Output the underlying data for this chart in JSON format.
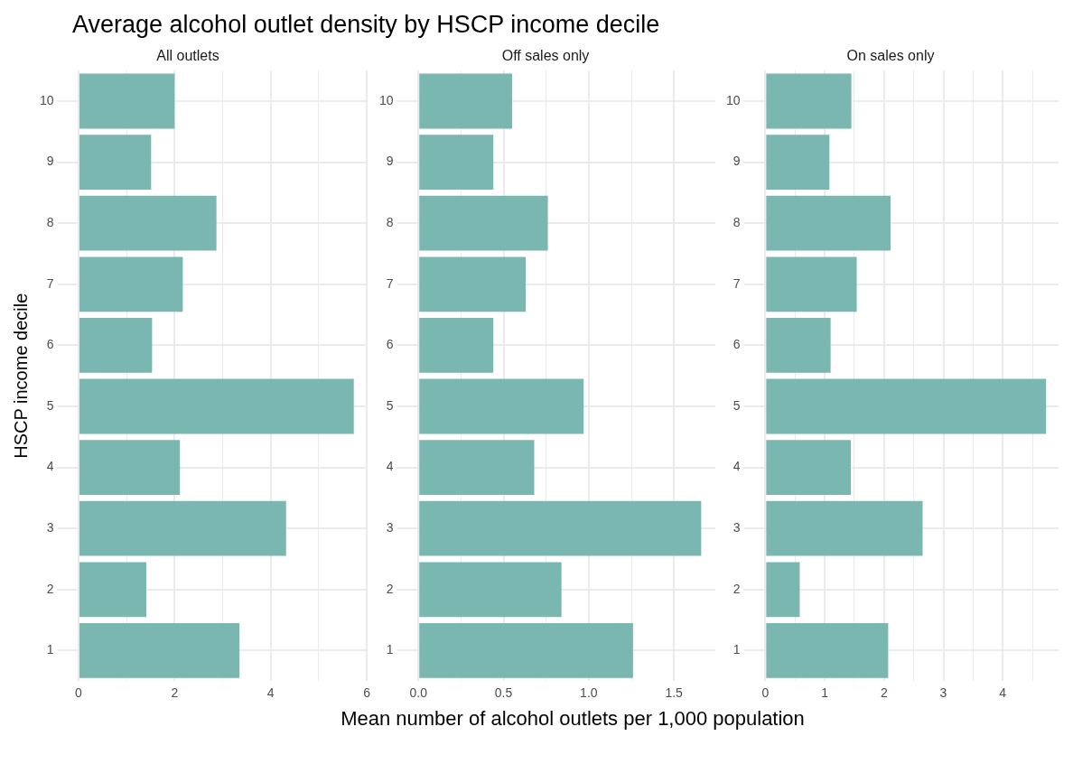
{
  "chart_data": [
    {
      "type": "bar",
      "orientation": "horizontal",
      "title": "Average alcohol outlet density by HSCP income decile",
      "subtitle": "All outlets",
      "ylabel": "HSCP income decile",
      "categories": [
        "10",
        "9",
        "8",
        "7",
        "6",
        "5",
        "4",
        "3",
        "2",
        "1"
      ],
      "color": "#79b7b0",
      "values": [
        2.0,
        1.51,
        2.87,
        2.17,
        1.53,
        5.73,
        2.11,
        4.32,
        1.41,
        3.35
      ],
      "xlim": [
        -0.29,
        6.02
      ],
      "xticks": [
        0,
        {
          "value": 1,
          "label": null
        },
        2,
        {
          "value": 3,
          "label": null
        },
        4,
        {
          "value": 5,
          "label": null
        },
        6
      ],
      "grid": true
    },
    {
      "type": "bar",
      "orientation": "horizontal",
      "subtitle": "Off sales only",
      "xlabel": "Mean number of alcohol outlets per 1,000 population",
      "categories": [
        "10",
        "9",
        "8",
        "7",
        "6",
        "5",
        "4",
        "3",
        "2",
        "1"
      ],
      "color": "#79b7b0",
      "values": [
        0.55,
        0.44,
        0.76,
        0.63,
        0.44,
        0.97,
        0.68,
        1.66,
        0.84,
        1.26
      ],
      "xlim": [
        -0.083,
        1.743
      ],
      "xticks": [
        {
          "value": 0,
          "label": "0.0"
        },
        {
          "value": 0.25,
          "label": null
        },
        0.5,
        {
          "value": 0.75,
          "label": null
        },
        {
          "value": 1,
          "label": "1.0"
        },
        {
          "value": 1.25,
          "label": null
        },
        1.5
      ],
      "grid": true
    },
    {
      "type": "bar",
      "orientation": "horizontal",
      "subtitle": "On sales only",
      "categories": [
        "10",
        "9",
        "8",
        "7",
        "6",
        "5",
        "4",
        "3",
        "2",
        "1"
      ],
      "color": "#79b7b0",
      "values": [
        1.45,
        1.08,
        2.11,
        1.54,
        1.1,
        4.73,
        1.44,
        2.65,
        0.58,
        2.07
      ],
      "xlim": [
        -0.24,
        4.94
      ],
      "xticks": [
        0,
        {
          "value": 0.5,
          "label": null
        },
        1,
        {
          "value": 1.5,
          "label": null
        },
        2,
        {
          "value": 2.5,
          "label": null
        },
        3,
        {
          "value": 3.5,
          "label": null
        },
        4,
        {
          "value": 4.5,
          "label": null
        }
      ],
      "grid": true
    }
  ]
}
